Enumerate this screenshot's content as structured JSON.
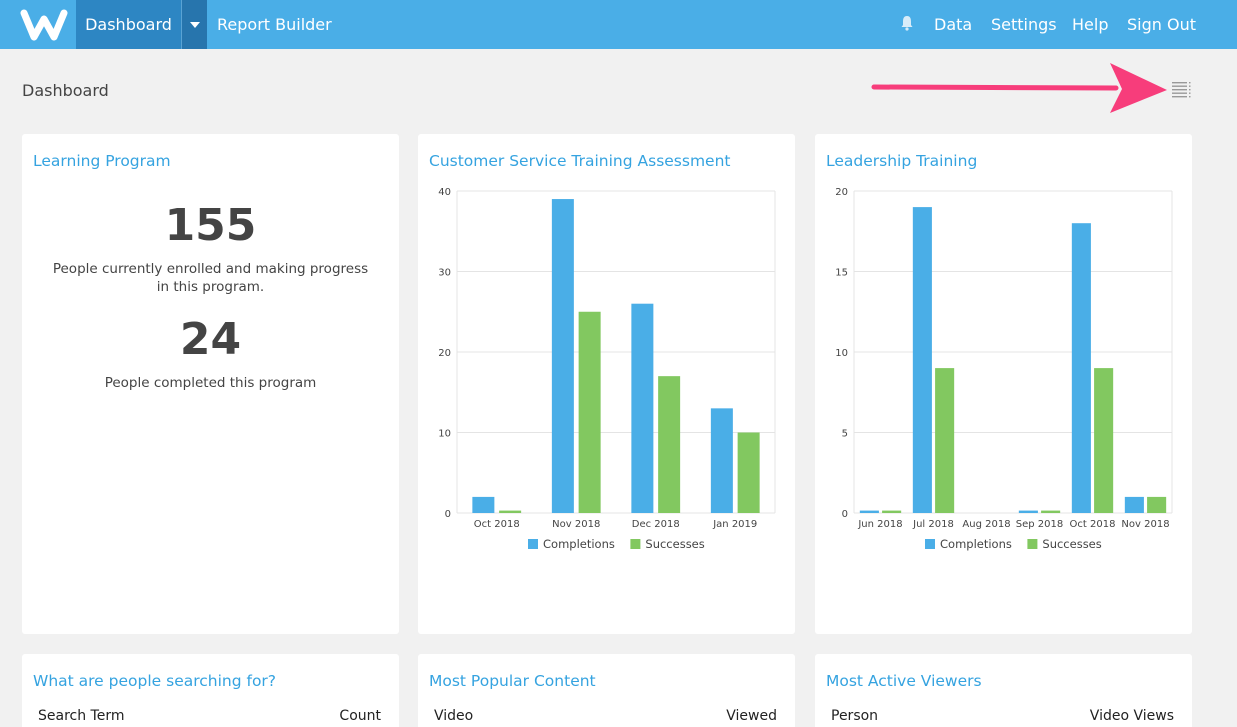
{
  "header": {
    "nav_active": "Dashboard",
    "report_builder": "Report Builder",
    "links": [
      "Data",
      "Settings",
      "Help",
      "Sign Out"
    ],
    "accent_color": "#4aaee7"
  },
  "page": {
    "title": "Dashboard"
  },
  "learning_program": {
    "title": "Learning Program",
    "enrolled_count": "155",
    "enrolled_desc": "People currently enrolled and making progress in this program.",
    "completed_count": "24",
    "completed_desc": "People completed this program"
  },
  "chart_data": [
    {
      "type": "bar",
      "title": "Customer Service Training Assessment",
      "categories": [
        "Oct 2018",
        "Nov 2018",
        "Dec 2018",
        "Jan 2019"
      ],
      "series": [
        {
          "name": "Completions",
          "color": "#4aaee7",
          "values": [
            2,
            39,
            26,
            13
          ]
        },
        {
          "name": "Successes",
          "color": "#82c860",
          "values": [
            0.3,
            25,
            17,
            10
          ]
        }
      ],
      "ylim": [
        0,
        40
      ],
      "yticks": [
        0,
        10,
        20,
        30,
        40
      ],
      "legend": "bottom",
      "grid": true
    },
    {
      "type": "bar",
      "title": "Leadership Training",
      "categories": [
        "Jun 2018",
        "Jul 2018",
        "Aug 2018",
        "Sep 2018",
        "Oct 2018",
        "Nov 2018"
      ],
      "series": [
        {
          "name": "Completions",
          "color": "#4aaee7",
          "values": [
            0.15,
            19,
            0,
            0.15,
            18,
            1
          ]
        },
        {
          "name": "Successes",
          "color": "#82c860",
          "values": [
            0.15,
            9,
            0,
            0.15,
            9,
            1
          ]
        }
      ],
      "ylim": [
        0,
        20
      ],
      "yticks": [
        0,
        5,
        10,
        15,
        20
      ],
      "legend": "bottom",
      "grid": true
    }
  ],
  "searching": {
    "title": "What are people searching for?",
    "col1": "Search Term",
    "col2": "Count"
  },
  "popular": {
    "title": "Most Popular Content",
    "col1": "Video",
    "col2": "Viewed"
  },
  "viewers": {
    "title": "Most Active Viewers",
    "col1": "Person",
    "col2": "Video Views"
  }
}
